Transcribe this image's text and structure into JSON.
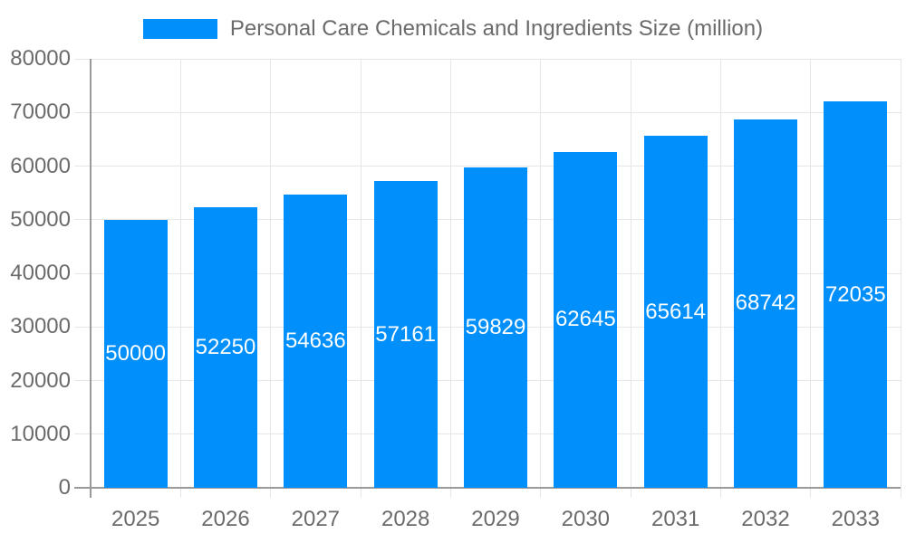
{
  "chart_data": {
    "type": "bar",
    "title": "Personal Care Chemicals and Ingredients Size (million)",
    "series_name": "Personal Care Chemicals and Ingredients Size (million)",
    "categories": [
      "2025",
      "2026",
      "2027",
      "2028",
      "2029",
      "2030",
      "2031",
      "2032",
      "2033"
    ],
    "values": [
      50000,
      52250,
      54636,
      57161,
      59829,
      62645,
      65614,
      68742,
      72035
    ],
    "xlabel": "",
    "ylabel": "",
    "ylim": [
      0,
      80000
    ],
    "ytick_step": 10000,
    "ytick_labels": [
      "0",
      "10000",
      "20000",
      "30000",
      "40000",
      "50000",
      "60000",
      "70000",
      "80000"
    ],
    "grid": true,
    "legend_position": "top",
    "value_labels_shown": true,
    "colors": {
      "bar": "#008FFB",
      "value_label": "#FFFFFF",
      "axis_text": "#6B6B6B",
      "grid": "#E6E6E6",
      "axis_line": "#9A9A9A",
      "background": "#FFFFFF"
    }
  }
}
